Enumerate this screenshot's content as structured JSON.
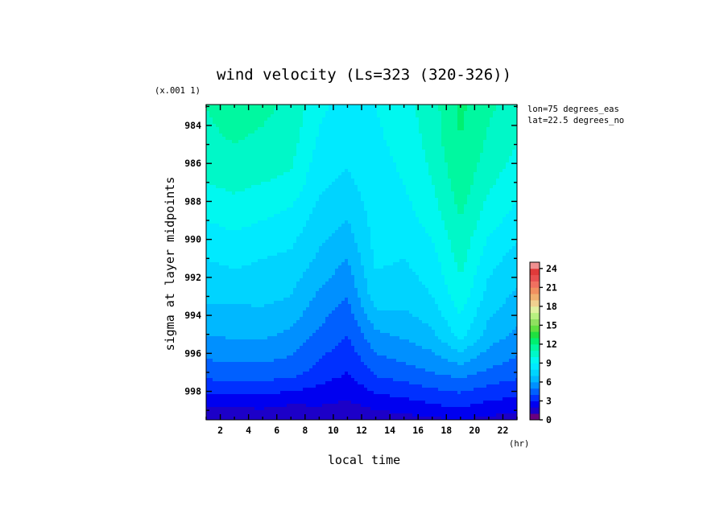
{
  "chart_data": {
    "type": "heatmap",
    "title": "wind velocity (Ls=323 (320-326))",
    "xlabel": "local time",
    "ylabel": "sigma at layer midpoints",
    "y_multiplier_label": "(x.001 1)",
    "x_unit_label": "(hr)",
    "annotations": [
      "lon=75 degrees_eas",
      "lat=22.5 degrees_no"
    ],
    "xlim": [
      1,
      23
    ],
    "ylim": [
      999.5,
      982.9
    ],
    "x_ticks": [
      2,
      4,
      6,
      8,
      10,
      12,
      14,
      16,
      18,
      20,
      22
    ],
    "y_ticks": [
      984,
      986,
      988,
      990,
      992,
      994,
      996,
      998
    ],
    "x": [
      1,
      3,
      5,
      7,
      9,
      11,
      13,
      15,
      17,
      19,
      21,
      23
    ],
    "y": [
      983,
      985,
      987,
      989,
      991,
      993,
      995,
      997,
      999,
      999.5
    ],
    "z": [
      [
        11.0,
        11.4,
        11.2,
        10.8,
        9.2,
        8.6,
        9.0,
        9.6,
        10.6,
        12.2,
        11.2,
        10.4
      ],
      [
        10.8,
        11.0,
        10.8,
        10.4,
        8.8,
        8.3,
        8.8,
        9.3,
        10.4,
        12.0,
        10.8,
        10.0
      ],
      [
        10.0,
        10.3,
        10.0,
        9.8,
        8.2,
        7.8,
        8.6,
        9.0,
        10.0,
        11.6,
        10.2,
        9.4
      ],
      [
        9.0,
        9.3,
        9.0,
        8.6,
        7.6,
        7.0,
        8.4,
        8.6,
        9.4,
        11.0,
        9.4,
        8.6
      ],
      [
        8.0,
        8.3,
        8.0,
        7.8,
        6.8,
        6.0,
        8.2,
        8.0,
        8.6,
        10.4,
        8.4,
        7.6
      ],
      [
        7.2,
        7.2,
        7.3,
        7.0,
        5.8,
        5.0,
        7.6,
        7.4,
        8.0,
        9.6,
        7.6,
        6.8
      ],
      [
        6.0,
        6.2,
        6.2,
        5.8,
        4.8,
        4.0,
        5.8,
        6.2,
        6.8,
        8.4,
        6.6,
        5.8
      ],
      [
        4.5,
        4.6,
        4.6,
        4.4,
        3.6,
        3.0,
        4.2,
        4.6,
        5.0,
        5.4,
        4.8,
        4.4
      ],
      [
        1.8,
        1.8,
        1.9,
        1.6,
        1.8,
        1.6,
        2.0,
        2.2,
        2.6,
        2.8,
        2.4,
        2.2
      ],
      [
        1.0,
        1.0,
        1.1,
        0.9,
        1.2,
        1.2,
        1.4,
        1.6,
        1.8,
        2.0,
        1.7,
        1.5
      ]
    ],
    "colorbar": {
      "ticks": [
        0,
        3,
        6,
        9,
        12,
        15,
        18,
        21,
        24
      ],
      "min": 0,
      "max": 25,
      "colors": [
        "#6a0080",
        "#1c00c8",
        "#0000f0",
        "#0030ff",
        "#0060ff",
        "#0090ff",
        "#00b8ff",
        "#00d4ff",
        "#00eaff",
        "#00f8f0",
        "#00f8c8",
        "#00f8a0",
        "#00f070",
        "#20e040",
        "#60e040",
        "#90e060",
        "#b8f080",
        "#e0f0a0",
        "#f0d090",
        "#f0b070",
        "#f09060",
        "#f07060",
        "#e85050",
        "#e03a3a",
        "#f09090"
      ]
    }
  }
}
